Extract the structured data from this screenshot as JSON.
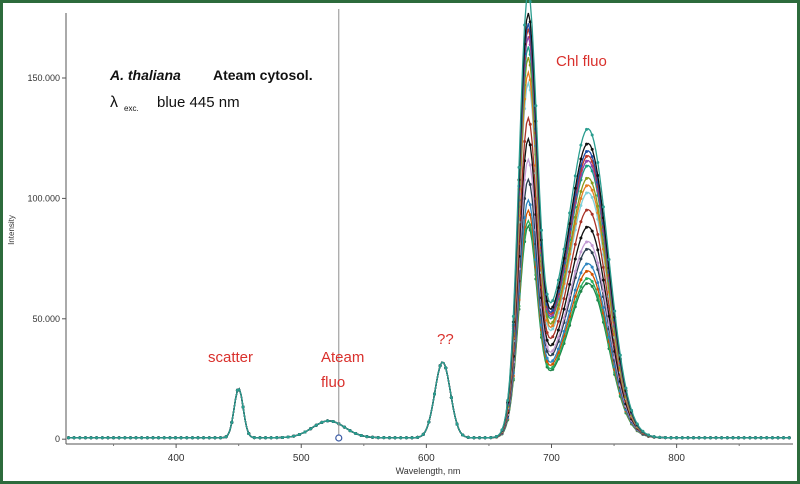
{
  "chart_data": {
    "type": "line",
    "title": "",
    "xlabel": "Wavelength, nm",
    "ylabel": "Intensity",
    "xlim": [
      312,
      893
    ],
    "ylim": [
      -2000,
      177000
    ],
    "xticks": [
      400,
      500,
      600,
      700,
      800
    ],
    "yticks": [
      0,
      50000,
      100000,
      150000
    ],
    "ytick_labels": [
      "0",
      "50.000",
      "100.000",
      "150.000"
    ],
    "grid": false,
    "legend": "none",
    "annotations": {
      "species": "A. thaliana",
      "sample": "Ateam cytosol.",
      "lambda": "λ",
      "exc_sub": "exc.",
      "excitation": "blue 445 nm",
      "scatter": "scatter",
      "ateam_line1": "Ateam",
      "ateam_line2": "fluo",
      "unknown": "??",
      "chl": "Chl fluo"
    },
    "cursor_wavelength": 530,
    "series": [
      {
        "color": "#2a9d8f",
        "values": {
          "peak680": 173000,
          "shoulder730": 126000,
          "p612": 31500,
          "scatter": 20500,
          "ateam": 7000
        }
      },
      {
        "color": "#111111",
        "values": {
          "peak680": 165000,
          "shoulder730": 120000,
          "p612": 31500,
          "scatter": 20500,
          "ateam": 7000
        }
      },
      {
        "color": "#1f4fa6",
        "values": {
          "peak680": 161000,
          "shoulder730": 117000,
          "p612": 31500,
          "scatter": 20500,
          "ateam": 7000
        }
      },
      {
        "color": "#c0392b",
        "values": {
          "peak680": 159000,
          "shoulder730": 115000,
          "p612": 31500,
          "scatter": 20500,
          "ateam": 7000
        }
      },
      {
        "color": "#8e44ad",
        "values": {
          "peak680": 156000,
          "shoulder730": 113000,
          "p612": 31500,
          "scatter": 20500,
          "ateam": 7000
        }
      },
      {
        "color": "#16a085",
        "values": {
          "peak680": 152000,
          "shoulder730": 111000,
          "p612": 31500,
          "scatter": 20500,
          "ateam": 7000
        }
      },
      {
        "color": "#8a9a1b",
        "values": {
          "peak680": 148000,
          "shoulder730": 106000,
          "p612": 31500,
          "scatter": 20500,
          "ateam": 7000
        }
      },
      {
        "color": "#e67e22",
        "values": {
          "peak680": 142000,
          "shoulder730": 103000,
          "p612": 31500,
          "scatter": 20500,
          "ateam": 7000
        }
      },
      {
        "color": "#7fd1d9",
        "values": {
          "peak680": 138000,
          "shoulder730": 100000,
          "p612": 31500,
          "scatter": 20500,
          "ateam": 7000
        }
      },
      {
        "color": "#a93226",
        "values": {
          "peak680": 124000,
          "shoulder730": 93000,
          "p612": 31500,
          "scatter": 20500,
          "ateam": 7000
        }
      },
      {
        "color": "#111111",
        "values": {
          "peak680": 116000,
          "shoulder730": 86000,
          "p612": 31500,
          "scatter": 20500,
          "ateam": 7000
        }
      },
      {
        "color": "#c39bd3",
        "values": {
          "peak680": 108000,
          "shoulder730": 80000,
          "p612": 31500,
          "scatter": 20500,
          "ateam": 7000
        }
      },
      {
        "color": "#2c3e50",
        "values": {
          "peak680": 100000,
          "shoulder730": 77000,
          "p612": 31500,
          "scatter": 20500,
          "ateam": 7000
        }
      },
      {
        "color": "#2e86c1",
        "values": {
          "peak680": 92000,
          "shoulder730": 71000,
          "p612": 31500,
          "scatter": 20500,
          "ateam": 7000
        }
      },
      {
        "color": "#d35400",
        "values": {
          "peak680": 88000,
          "shoulder730": 68000,
          "p612": 31500,
          "scatter": 20500,
          "ateam": 7000
        }
      },
      {
        "color": "#27ae60",
        "values": {
          "peak680": 84000,
          "shoulder730": 65000,
          "p612": 31500,
          "scatter": 20500,
          "ateam": 7000
        }
      },
      {
        "color": "#1e8449",
        "values": {
          "peak680": 82000,
          "shoulder730": 63000,
          "p612": 31500,
          "scatter": 20500,
          "ateam": 7000
        }
      }
    ]
  }
}
